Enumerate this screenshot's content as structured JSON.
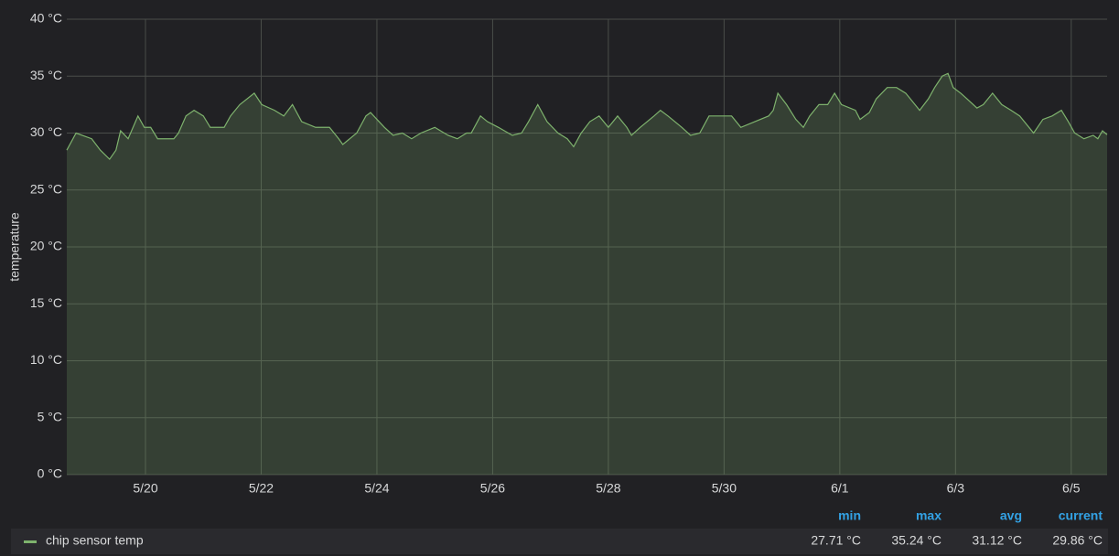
{
  "chart_data": {
    "type": "line",
    "ylabel": "temperature",
    "x": [
      18.64,
      18.8,
      19.07,
      19.22,
      19.38,
      19.49,
      19.57,
      19.7,
      19.87,
      19.98,
      20.09,
      20.21,
      20.49,
      20.57,
      20.7,
      20.84,
      21.0,
      21.12,
      21.36,
      21.47,
      21.63,
      21.88,
      22.01,
      22.23,
      22.39,
      22.54,
      22.7,
      22.94,
      23.18,
      23.34,
      23.41,
      23.65,
      23.81,
      23.89,
      24.13,
      24.28,
      24.44,
      24.6,
      24.76,
      25.0,
      25.23,
      25.39,
      25.55,
      25.63,
      25.79,
      25.91,
      26.1,
      26.34,
      26.5,
      26.62,
      26.78,
      26.94,
      27.13,
      27.29,
      27.4,
      27.53,
      27.68,
      27.84,
      28.0,
      28.16,
      28.32,
      28.4,
      28.55,
      28.79,
      28.9,
      29.03,
      29.27,
      29.42,
      29.58,
      29.74,
      29.98,
      30.13,
      30.29,
      30.53,
      30.77,
      30.85,
      30.93,
      31.08,
      31.24,
      31.37,
      31.48,
      31.64,
      31.79,
      31.91,
      32.03,
      32.27,
      32.35,
      32.51,
      32.63,
      32.82,
      32.98,
      33.14,
      33.3,
      33.38,
      33.53,
      33.64,
      33.77,
      33.87,
      33.96,
      34.09,
      34.2,
      34.37,
      34.48,
      34.64,
      34.8,
      34.96,
      35.11,
      35.35,
      35.51,
      35.67,
      35.83,
      35.95,
      36.06,
      36.22,
      36.38,
      36.46,
      36.54,
      36.62
    ],
    "series": [
      {
        "name": "chip sensor temp",
        "color": "#7eb26d",
        "values": [
          28.5,
          30.0,
          29.5,
          28.5,
          27.7,
          28.5,
          30.2,
          29.5,
          31.5,
          30.5,
          30.5,
          29.5,
          29.5,
          30.0,
          31.5,
          32.0,
          31.5,
          30.5,
          30.5,
          31.5,
          32.5,
          33.5,
          32.5,
          32.0,
          31.5,
          32.5,
          31.0,
          30.5,
          30.5,
          29.5,
          29.0,
          30.0,
          31.5,
          31.8,
          30.5,
          29.8,
          30.0,
          29.5,
          30.0,
          30.5,
          29.8,
          29.5,
          30.0,
          30.0,
          31.5,
          31.0,
          30.5,
          29.8,
          30.0,
          31.0,
          32.5,
          31.0,
          30.0,
          29.5,
          28.8,
          30.0,
          31.0,
          31.5,
          30.5,
          31.5,
          30.5,
          29.8,
          30.5,
          31.5,
          32.0,
          31.5,
          30.5,
          29.8,
          30.0,
          31.5,
          31.5,
          31.5,
          30.5,
          31.0,
          31.5,
          32.0,
          33.5,
          32.5,
          31.2,
          30.5,
          31.5,
          32.5,
          32.5,
          33.5,
          32.5,
          32.0,
          31.2,
          31.8,
          33.0,
          34.0,
          34.0,
          33.5,
          32.5,
          32.0,
          33.0,
          34.0,
          35.0,
          35.24,
          34.0,
          33.5,
          33.0,
          32.2,
          32.5,
          33.5,
          32.5,
          32.0,
          31.5,
          30.0,
          31.2,
          31.5,
          32.0,
          31.0,
          30.0,
          29.5,
          29.8,
          29.5,
          30.2,
          29.86
        ]
      }
    ],
    "xlim": [
      18.64,
      36.62
    ],
    "xticks": [
      {
        "value": 20,
        "label": "5/20"
      },
      {
        "value": 22,
        "label": "5/22"
      },
      {
        "value": 24,
        "label": "5/24"
      },
      {
        "value": 26,
        "label": "5/26"
      },
      {
        "value": 28,
        "label": "5/28"
      },
      {
        "value": 30,
        "label": "5/30"
      },
      {
        "value": 32,
        "label": "6/1"
      },
      {
        "value": 34,
        "label": "6/3"
      },
      {
        "value": 36,
        "label": "6/5"
      }
    ],
    "ylim": [
      0,
      40
    ],
    "yticks": [
      {
        "value": 0,
        "label": "0 °C"
      },
      {
        "value": 5,
        "label": "5 °C"
      },
      {
        "value": 10,
        "label": "10 °C"
      },
      {
        "value": 15,
        "label": "15 °C"
      },
      {
        "value": 20,
        "label": "20 °C"
      },
      {
        "value": 25,
        "label": "25 °C"
      },
      {
        "value": 30,
        "label": "30 °C"
      },
      {
        "value": 35,
        "label": "35 °C"
      },
      {
        "value": 40,
        "label": "40 °C"
      }
    ],
    "grid": true,
    "fill": true,
    "legend_table": {
      "columns": [
        "min",
        "max",
        "avg",
        "current"
      ],
      "stats": [
        "27.71 °C",
        "35.24 °C",
        "31.12 °C",
        "29.86 °C"
      ]
    }
  }
}
